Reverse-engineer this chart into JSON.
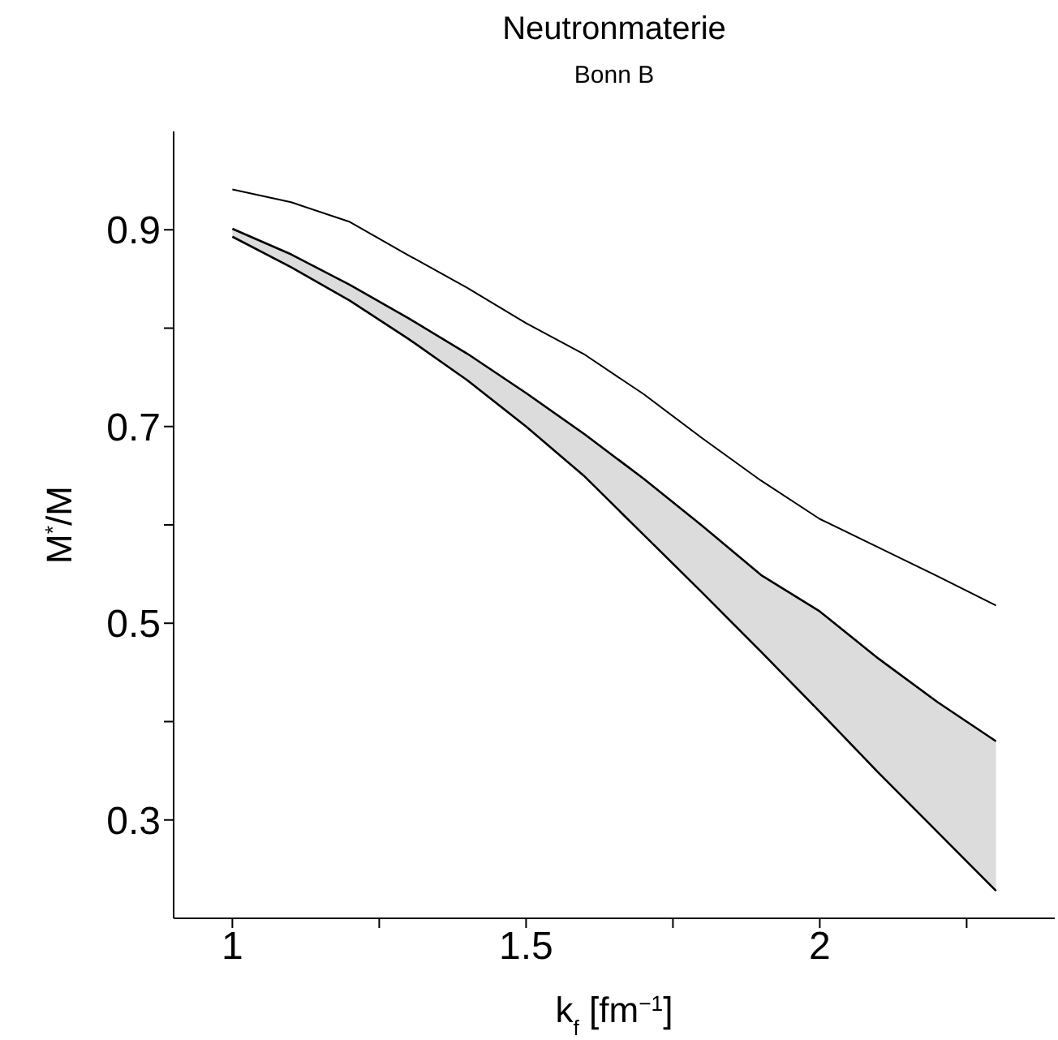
{
  "chart_data": {
    "type": "line",
    "title": "Neutronmaterie",
    "subtitle": "Bonn B",
    "xlabel": "k$_{f}$ [fm$^{−1}$]",
    "ylabel": "M$^{*}$/M",
    "x": [
      1.0,
      1.1,
      1.2,
      1.3,
      1.4,
      1.5,
      1.6,
      1.7,
      1.8,
      1.9,
      2.0,
      2.1,
      2.2,
      2.3
    ],
    "series": [
      {
        "color": "#000000",
        "values": [
          0.941,
          0.928,
          0.908,
          0.874,
          0.841,
          0.805,
          0.773,
          0.733,
          0.688,
          0.645,
          0.606,
          0.577,
          0.548,
          0.518
        ]
      },
      {
        "color": "#000000",
        "values": [
          0.901,
          0.875,
          0.844,
          0.81,
          0.774,
          0.734,
          0.692,
          0.647,
          0.599,
          0.549,
          0.512,
          0.464,
          0.42,
          0.38
        ],
        "lower": [
          0.893,
          0.862,
          0.828,
          0.789,
          0.747,
          0.7,
          0.649,
          0.59,
          0.531,
          0.471,
          0.41,
          0.348,
          0.288,
          0.228
        ],
        "upper": [
          0.901,
          0.875,
          0.844,
          0.81,
          0.774,
          0.734,
          0.692,
          0.647,
          0.599,
          0.549,
          0.512,
          0.464,
          0.42,
          0.38
        ]
      },
      {
        "color": "#000000",
        "values": [
          0.893,
          0.862,
          0.828,
          0.789,
          0.747,
          0.7,
          0.649,
          0.59,
          0.531,
          0.471,
          0.41,
          0.348,
          0.288,
          0.228
        ]
      }
    ],
    "xlim": [
      0.9,
      2.4
    ],
    "xticks": [
      1,
      {
        "value": 1.25,
        "label": null
      },
      1.5,
      {
        "value": 1.75,
        "label": null
      },
      2,
      {
        "value": 2.25,
        "label": null
      }
    ],
    "ylim": [
      0.2,
      1.0
    ],
    "yticks": [
      0.3,
      {
        "value": 0.4,
        "label": null
      },
      0.5,
      {
        "value": 0.6,
        "label": null
      },
      0.7,
      {
        "value": 0.8,
        "label": null
      },
      0.9
    ]
  }
}
